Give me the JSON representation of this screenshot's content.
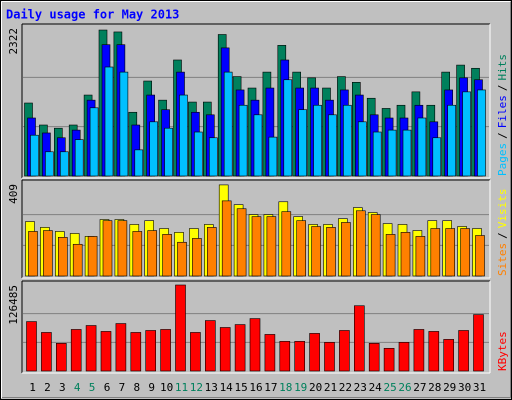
{
  "title": "Daily usage for May 2013",
  "legend_separator": "/",
  "chart_data": [
    {
      "type": "bar",
      "ylim": [
        0,
        2322
      ],
      "yticks": [
        2322
      ],
      "series": [
        {
          "name": "Hits",
          "color": "#00805c",
          "values": [
            1145,
            800,
            750,
            800,
            1270,
            2290,
            2260,
            1000,
            1490,
            1190,
            1820,
            1160,
            1160,
            2220,
            1560,
            1380,
            1630,
            2050,
            1630,
            1540,
            1380,
            1560,
            1470,
            1220,
            1060,
            1110,
            1320,
            1110,
            1630,
            1740,
            1690
          ]
        },
        {
          "name": "Files",
          "color": "#0000ff",
          "values": [
            910,
            675,
            600,
            720,
            1190,
            2060,
            2060,
            800,
            1270,
            1040,
            1630,
            1000,
            960,
            2010,
            1350,
            1190,
            1380,
            1820,
            1380,
            1380,
            1190,
            1350,
            1270,
            960,
            910,
            910,
            1110,
            850,
            1350,
            1540,
            1510
          ]
        },
        {
          "name": "Pages",
          "color": "#00c0ff",
          "values": [
            640,
            380,
            380,
            570,
            1070,
            1710,
            1630,
            410,
            850,
            750,
            1270,
            690,
            600,
            1630,
            1110,
            960,
            610,
            1510,
            1040,
            1110,
            960,
            1110,
            850,
            690,
            720,
            720,
            910,
            600,
            1110,
            1320,
            1350
          ]
        }
      ]
    },
    {
      "type": "bar",
      "ylim": [
        0,
        409
      ],
      "yticks": [
        409
      ],
      "series": [
        {
          "name": "Visits",
          "color": "#ffff00",
          "values": [
            242,
            216,
            198,
            189,
            176,
            251,
            251,
            229,
            246,
            211,
            194,
            211,
            229,
            405,
            317,
            273,
            273,
            330,
            264,
            229,
            229,
            255,
            304,
            282,
            233,
            229,
            202,
            246,
            246,
            220,
            211
          ]
        },
        {
          "name": "Sites",
          "color": "#ff8000",
          "values": [
            198,
            202,
            172,
            141,
            176,
            246,
            246,
            198,
            202,
            185,
            150,
            167,
            216,
            334,
            299,
            264,
            264,
            286,
            246,
            220,
            216,
            238,
            290,
            273,
            185,
            194,
            176,
            211,
            211,
            211,
            180
          ]
        }
      ]
    },
    {
      "type": "bar",
      "ylim": [
        0,
        126485
      ],
      "yticks": [
        126485
      ],
      "categories": [
        "1",
        "2",
        "3",
        "4",
        "5",
        "6",
        "7",
        "8",
        "9",
        "10",
        "11",
        "12",
        "13",
        "14",
        "15",
        "16",
        "17",
        "18",
        "19",
        "20",
        "21",
        "22",
        "23",
        "24",
        "25",
        "26",
        "27",
        "28",
        "29",
        "30",
        "31"
      ],
      "category_colors": [
        "#000000",
        "#000000",
        "#000000",
        "#00805c",
        "#00805c",
        "#000000",
        "#000000",
        "#000000",
        "#000000",
        "#000000",
        "#00805c",
        "#00805c",
        "#000000",
        "#000000",
        "#000000",
        "#000000",
        "#000000",
        "#00805c",
        "#00805c",
        "#000000",
        "#000000",
        "#000000",
        "#000000",
        "#000000",
        "#00805c",
        "#00805c",
        "#000000",
        "#000000",
        "#000000",
        "#000000",
        "#000000"
      ],
      "series": [
        {
          "name": "KBytes",
          "color": "#ff0000",
          "values": [
            72700,
            56700,
            40700,
            61100,
            66900,
            58200,
            69800,
            56700,
            59600,
            61100,
            126485,
            56700,
            74200,
            64000,
            68300,
            77100,
            53800,
            43600,
            43600,
            55300,
            42200,
            59600,
            96000,
            40700,
            33400,
            42200,
            61100,
            58200,
            46500,
            59600,
            82900
          ]
        }
      ]
    }
  ]
}
